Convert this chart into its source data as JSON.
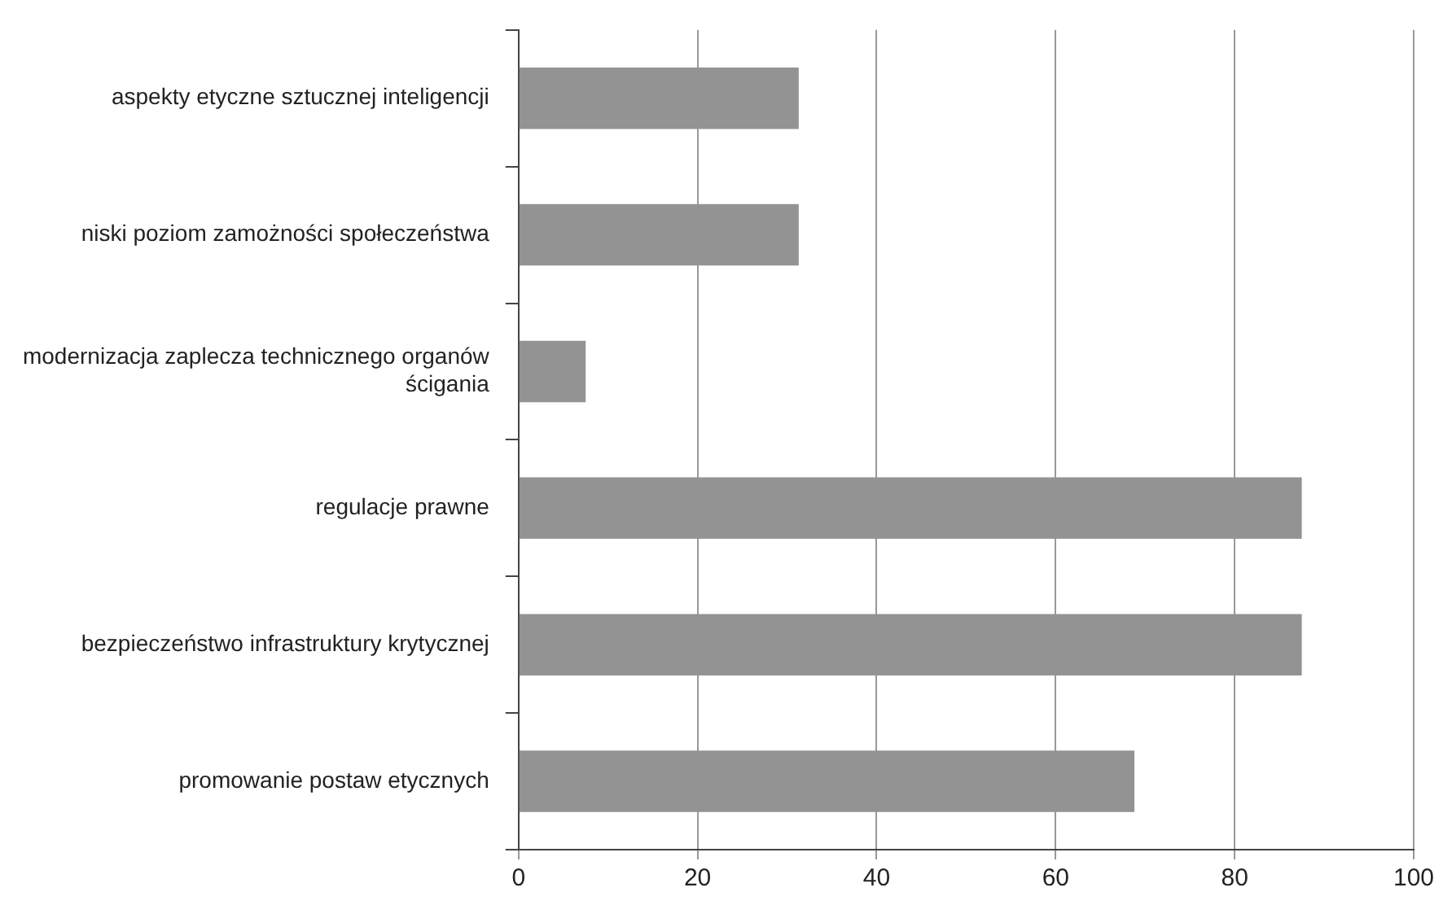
{
  "chart_data": {
    "type": "bar",
    "orientation": "horizontal",
    "categories": [
      "aspekty etyczne sztucznej inteligencji",
      "niski poziom zamożności społeczeństwa",
      "modernizacja zaplecza technicznego organów ścigania",
      "regulacje prawne",
      "bezpieczeństwo infrastruktury krytycznej",
      "promowanie postaw etycznych"
    ],
    "values": [
      31.3,
      31.3,
      7.5,
      87.5,
      87.5,
      68.8
    ],
    "color": "#939393",
    "xlim": [
      0,
      100
    ],
    "xticks": [
      0,
      20,
      40,
      60,
      80,
      100
    ],
    "grid": "x",
    "legend": false
  }
}
